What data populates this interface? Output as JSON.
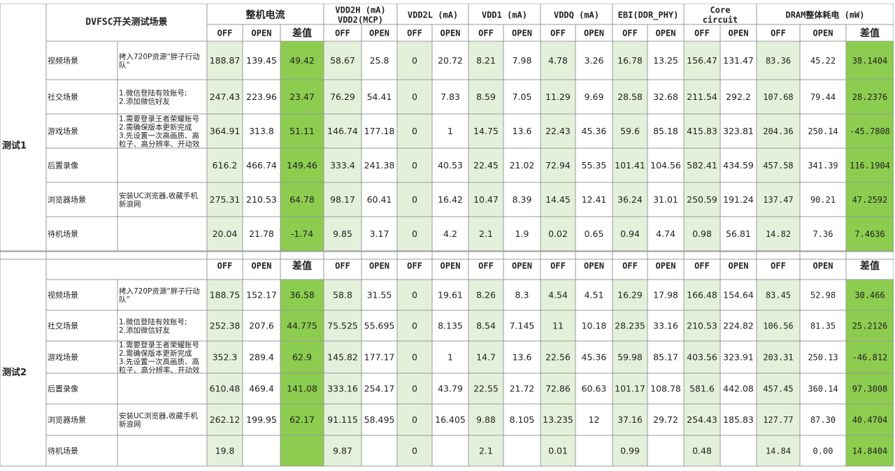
{
  "header": {
    "scenario_title": "DVFSC开关测试场景",
    "groups": [
      "整机电流",
      "VDD2H (mA)\nVDD2(MCP)",
      "VDD2L (mA)",
      "VDD1 (mA)",
      "VDDQ (mA)",
      "EBI(DDR_PHY)",
      "Core\ncircuit",
      "DRAM整体耗电 (mW)"
    ],
    "sub": {
      "off": "OFF",
      "open": "OPEN",
      "diff": "差值"
    }
  },
  "colors": {
    "light_green": "#e3f0da",
    "dark_green": "#8ccc4f",
    "grid": "#9a9a9a",
    "text": "#222222"
  },
  "tests": [
    {
      "label": "测试1",
      "rows": [
        {
          "scene": "视频场景",
          "desc": "拷入720P资源“胖子行动\n队”",
          "values": [
            "188.87",
            "139.45",
            "49.42",
            "58.67",
            "25.8",
            "0",
            "20.72",
            "8.21",
            "7.98",
            "4.78",
            "3.26",
            "16.78",
            "13.25",
            "156.47",
            "131.47",
            "83.36",
            "45.22",
            "38.1404"
          ]
        },
        {
          "scene": "社交场景",
          "desc": "1.微信登陆有效账号;\n2.添加微信好友",
          "values": [
            "247.43",
            "223.96",
            "23.47",
            "76.29",
            "54.41",
            "0",
            "7.83",
            "8.59",
            "7.05",
            "11.29",
            "9.69",
            "28.58",
            "32.68",
            "211.54",
            "292.2",
            "107.68",
            "79.44",
            "28.2376"
          ]
        },
        {
          "scene": "游戏场景",
          "desc": "1.需要登录王者荣耀账号\n2.需确保版本更新完成\n3.先设置一次高画质、高\n粒子、高分辨率、开动效",
          "values": [
            "364.91",
            "313.8",
            "51.11",
            "146.74",
            "177.18",
            "0",
            "1",
            "14.75",
            "13.6",
            "22.43",
            "45.36",
            "59.6",
            "85.18",
            "415.83",
            "323.81",
            "204.36",
            "250.14",
            "-45.7808"
          ]
        },
        {
          "scene": "后置录像",
          "desc": "",
          "values": [
            "616.2",
            "466.74",
            "149.46",
            "333.4",
            "241.38",
            "0",
            "40.53",
            "22.45",
            "21.02",
            "72.94",
            "55.35",
            "101.41",
            "104.56",
            "582.41",
            "434.59",
            "457.58",
            "341.39",
            "116.1904"
          ]
        },
        {
          "scene": "浏览器场景",
          "desc": "安装UC浏览器,收藏手机\n新浪网",
          "values": [
            "275.31",
            "210.53",
            "64.78",
            "98.17",
            "60.41",
            "0",
            "16.42",
            "10.47",
            "8.39",
            "14.45",
            "12.41",
            "36.24",
            "31.01",
            "250.59",
            "191.24",
            "137.47",
            "90.21",
            "47.2592"
          ]
        },
        {
          "scene": "待机场景",
          "desc": "",
          "values": [
            "20.04",
            "21.78",
            "-1.74",
            "9.85",
            "3.17",
            "0",
            "4.2",
            "2.1",
            "1.9",
            "0.02",
            "0.65",
            "0.94",
            "4.74",
            "0.98",
            "56.81",
            "14.82",
            "7.36",
            "7.4636"
          ]
        }
      ]
    },
    {
      "label": "测试2",
      "rows": [
        {
          "scene": "视频场景",
          "desc": "拷入720P资源“胖子行动\n队”",
          "values": [
            "188.75",
            "152.17",
            "36.58",
            "58.8",
            "31.55",
            "0",
            "19.61",
            "8.26",
            "8.3",
            "4.54",
            "4.51",
            "16.29",
            "17.98",
            "166.48",
            "154.64",
            "83.45",
            "52.98",
            "30.466"
          ]
        },
        {
          "scene": "社交场景",
          "desc": "1.微信登陆有效账号;\n2.添加微信好友",
          "values": [
            "252.38",
            "207.6",
            "44.775",
            "75.525",
            "55.695",
            "0",
            "8.135",
            "8.54",
            "7.145",
            "11",
            "10.18",
            "28.235",
            "33.16",
            "210.53",
            "224.82",
            "106.56",
            "81.35",
            "25.2126"
          ]
        },
        {
          "scene": "游戏场景",
          "desc": "1.需要登录王者荣耀账号\n2.需确保版本更新完成\n3.先设置一次高画质、高\n粒子、高分辨率、开动效",
          "values": [
            "352.3",
            "289.4",
            "62.9",
            "145.82",
            "177.17",
            "0",
            "1",
            "14.7",
            "13.6",
            "22.56",
            "45.36",
            "59.98",
            "85.17",
            "403.56",
            "323.91",
            "203.31",
            "250.13",
            "-46.812"
          ]
        },
        {
          "scene": "后置录像",
          "desc": "",
          "values": [
            "610.48",
            "469.4",
            "141.08",
            "333.16",
            "254.17",
            "0",
            "43.79",
            "22.55",
            "21.72",
            "72.86",
            "60.63",
            "101.17",
            "108.78",
            "581.6",
            "442.08",
            "457.45",
            "360.14",
            "97.3008"
          ]
        },
        {
          "scene": "浏览器场景",
          "desc": "安装UC浏览器,收藏手机\n新浪网",
          "values": [
            "262.12",
            "199.95",
            "62.17",
            "91.115",
            "58.495",
            "0",
            "16.405",
            "9.88",
            "8.105",
            "13.235",
            "12",
            "37.16",
            "29.72",
            "254.43",
            "185.83",
            "127.77",
            "87.30",
            "40.4704"
          ]
        },
        {
          "scene": "待机场景",
          "desc": "",
          "values": [
            "19.8",
            "",
            "",
            "9.87",
            "",
            "0",
            "",
            "2.1",
            "",
            "0.01",
            "",
            "0.99",
            "",
            "0.48",
            "",
            "14.84",
            "0.00",
            "14.8404"
          ]
        }
      ]
    }
  ]
}
